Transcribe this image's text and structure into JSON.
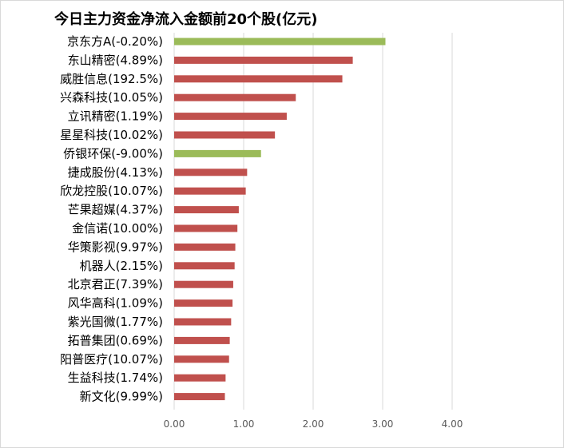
{
  "chart_data": {
    "type": "bar",
    "orientation": "horizontal",
    "title": "今日主力资金净流入金额前20个股(亿元)",
    "categories": [
      "京东方A(-0.20%)",
      "东山精密(4.89%)",
      "威胜信息(192.5%)",
      "兴森科技(10.05%)",
      "立讯精密(1.19%)",
      "星星科技(10.02%)",
      "侨银环保(-9.00%)",
      "捷成股份(4.13%)",
      "欣龙控股(10.07%)",
      "芒果超媒(4.37%)",
      "金信诺(10.00%)",
      "华策影视(9.97%)",
      "机器人(2.15%)",
      "北京君正(7.39%)",
      "风华高科(1.09%)",
      "紫光国微(1.77%)",
      "拓普集团(0.69%)",
      "阳普医疗(10.07%)",
      "生益科技(1.74%)",
      "新文化(9.99%)"
    ],
    "values": [
      3.04,
      2.57,
      2.42,
      1.75,
      1.62,
      1.45,
      1.25,
      1.05,
      1.03,
      0.93,
      0.91,
      0.88,
      0.87,
      0.85,
      0.84,
      0.82,
      0.8,
      0.79,
      0.74,
      0.73
    ],
    "bar_colors": [
      "#9bbb59",
      "#c0504d",
      "#c0504d",
      "#c0504d",
      "#c0504d",
      "#c0504d",
      "#9bbb59",
      "#c0504d",
      "#c0504d",
      "#c0504d",
      "#c0504d",
      "#c0504d",
      "#c0504d",
      "#c0504d",
      "#c0504d",
      "#c0504d",
      "#c0504d",
      "#c0504d",
      "#c0504d",
      "#c0504d"
    ],
    "xticks": [
      "0.00",
      "1.00",
      "2.00",
      "3.00",
      "4.00"
    ],
    "xlim": [
      0,
      4.5
    ],
    "grid": true,
    "legend": "none",
    "colors": {
      "positive": "#c0504d",
      "negative": "#9bbb59",
      "grid": "#d9d9d9"
    }
  }
}
